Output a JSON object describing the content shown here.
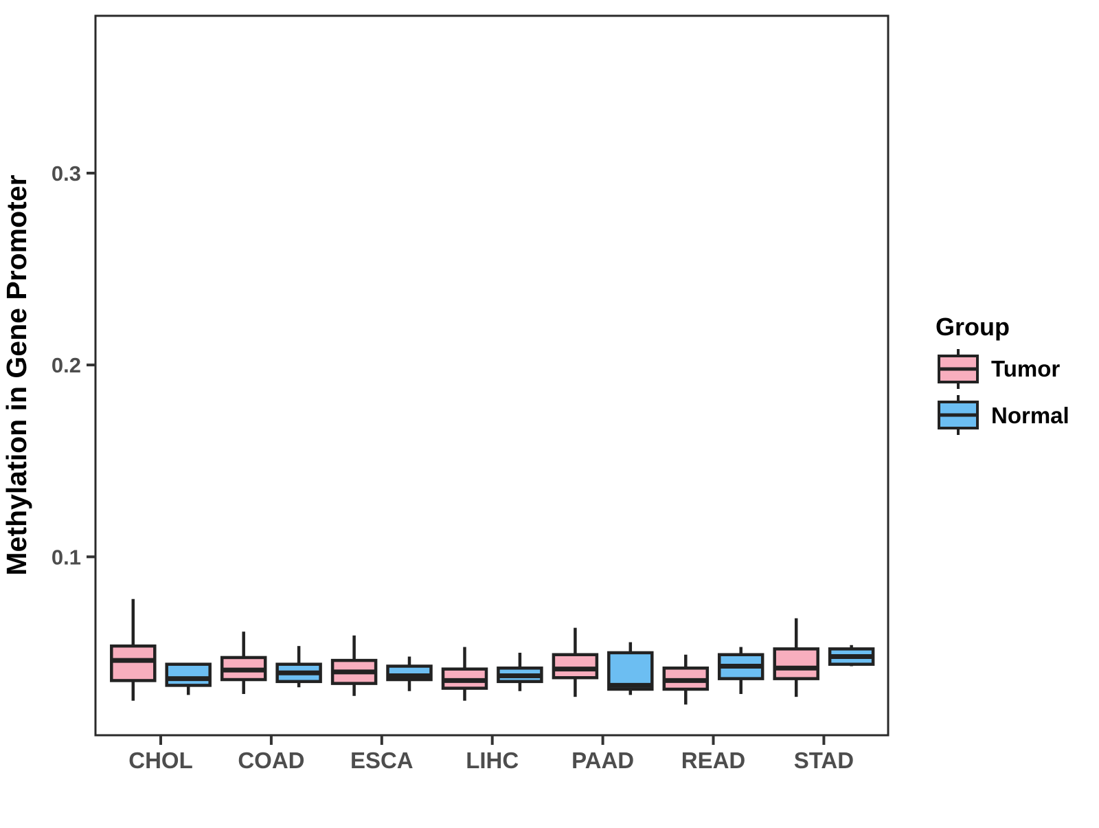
{
  "figure": {
    "background": "#ffffff"
  },
  "chart_data": {
    "type": "boxplot",
    "title": "",
    "xlabel": "",
    "ylabel": "Methylation in Gene Promoter",
    "categories": [
      "CHOL",
      "COAD",
      "ESCA",
      "LIHC",
      "PAAD",
      "READ",
      "STAD"
    ],
    "ylim": [
      0.007,
      0.382
    ],
    "yticks": [
      0.1,
      0.2,
      0.3
    ],
    "y_tick_labels": [
      "0.1",
      "0.2",
      "0.3"
    ],
    "grid": false,
    "legend": {
      "title": "Group",
      "position": "right",
      "entries": [
        {
          "label": "Tumor",
          "color": "#F8AEBE"
        },
        {
          "label": "Normal",
          "color": "#6CBEF2"
        }
      ]
    },
    "colors": {
      "outline": "#222222",
      "tick": "#333333",
      "tick_label": "#4d4d4d",
      "axis_title": "#000000",
      "panel_border": "#2a2a2a"
    },
    "series": [
      {
        "name": "Tumor",
        "color": "#F8AEBE",
        "boxes": [
          {
            "category": "CHOL",
            "min": 0.025,
            "q1": 0.0355,
            "median": 0.046,
            "q3": 0.0535,
            "max": 0.078
          },
          {
            "category": "COAD",
            "min": 0.0285,
            "q1": 0.036,
            "median": 0.041,
            "q3": 0.0475,
            "max": 0.061
          },
          {
            "category": "ESCA",
            "min": 0.0275,
            "q1": 0.034,
            "median": 0.04,
            "q3": 0.046,
            "max": 0.059
          },
          {
            "category": "LIHC",
            "min": 0.025,
            "q1": 0.0315,
            "median": 0.0355,
            "q3": 0.0415,
            "max": 0.053
          },
          {
            "category": "PAAD",
            "min": 0.027,
            "q1": 0.037,
            "median": 0.0415,
            "q3": 0.049,
            "max": 0.063
          },
          {
            "category": "READ",
            "min": 0.023,
            "q1": 0.031,
            "median": 0.0355,
            "q3": 0.042,
            "max": 0.049
          },
          {
            "category": "STAD",
            "min": 0.027,
            "q1": 0.0365,
            "median": 0.042,
            "q3": 0.052,
            "max": 0.068
          }
        ]
      },
      {
        "name": "Normal",
        "color": "#6CBEF2",
        "boxes": [
          {
            "category": "CHOL",
            "min": 0.028,
            "q1": 0.033,
            "median": 0.0365,
            "q3": 0.044,
            "max": 0.044
          },
          {
            "category": "COAD",
            "min": 0.032,
            "q1": 0.035,
            "median": 0.0395,
            "q3": 0.044,
            "max": 0.0535
          },
          {
            "category": "ESCA",
            "min": 0.03,
            "q1": 0.036,
            "median": 0.038,
            "q3": 0.043,
            "max": 0.048
          },
          {
            "category": "LIHC",
            "min": 0.03,
            "q1": 0.035,
            "median": 0.038,
            "q3": 0.042,
            "max": 0.05
          },
          {
            "category": "PAAD",
            "min": 0.028,
            "q1": 0.031,
            "median": 0.033,
            "q3": 0.05,
            "max": 0.0555
          },
          {
            "category": "READ",
            "min": 0.0285,
            "q1": 0.0365,
            "median": 0.043,
            "q3": 0.049,
            "max": 0.053
          },
          {
            "category": "STAD",
            "min": 0.043,
            "q1": 0.044,
            "median": 0.048,
            "q3": 0.052,
            "max": 0.054
          }
        ]
      }
    ]
  }
}
